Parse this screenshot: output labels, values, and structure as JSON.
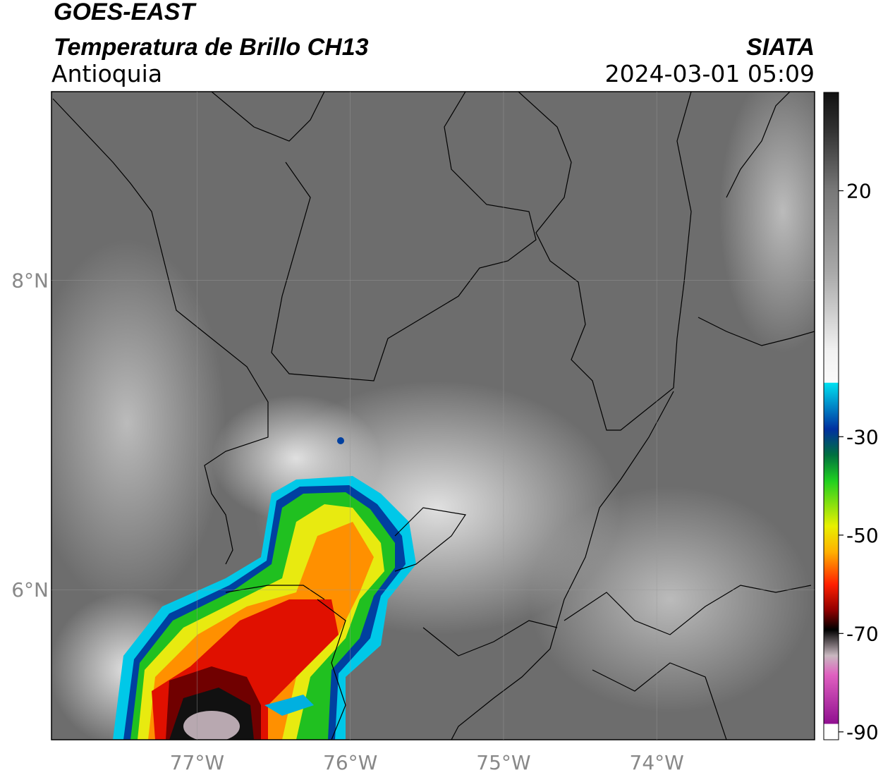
{
  "header": {
    "satellite": "GOES-EAST",
    "product": "Temperatura de Brillo CH13",
    "region": "Antioquia",
    "organization": "SIATA",
    "datetime": "2024-03-01 05:09"
  },
  "map": {
    "xlim": [
      -77.95,
      -72.97
    ],
    "ylim": [
      5.03,
      9.22
    ],
    "xticks": [
      {
        "value": -77,
        "label": "77°W"
      },
      {
        "value": -76,
        "label": "76°W"
      },
      {
        "value": -75,
        "label": "75°W"
      },
      {
        "value": -74,
        "label": "74°W"
      }
    ],
    "yticks": [
      {
        "value": 8,
        "label": "8°N"
      },
      {
        "value": 6,
        "label": "6°N"
      }
    ],
    "grid": true
  },
  "colorbar": {
    "lim": [
      -91.6,
      40
    ],
    "ticks": [
      20,
      -30,
      -50,
      -70,
      -90
    ]
  }
}
